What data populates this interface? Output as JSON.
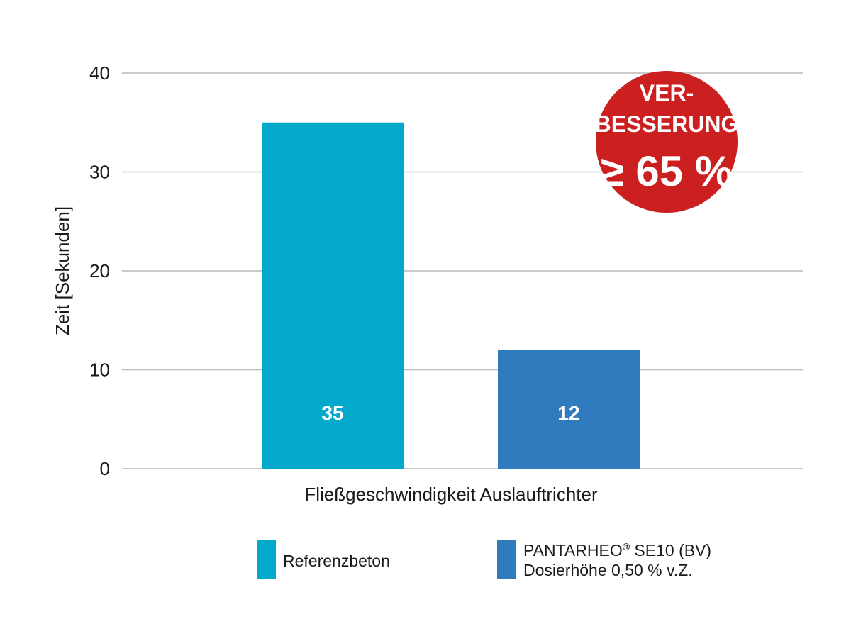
{
  "chart_data": {
    "type": "bar",
    "title": "",
    "ylabel": "Zeit [Sekunden]",
    "xlabel": "Fließgeschwindigkeit Auslauftrichter",
    "ylim": [
      0,
      40
    ],
    "yticks": [
      0,
      10,
      20,
      30,
      40
    ],
    "grid": true,
    "series": [
      {
        "name": "Referenzbeton",
        "value": 35,
        "color": "#02A9CB",
        "data_label": "35"
      },
      {
        "name": "PANTARHEO® SE10 (BV) Dosierhöhe 0,50 % v.Z.",
        "value": 12,
        "color": "#2F7BBD",
        "data_label": "12"
      }
    ],
    "legend_placement": "bottom"
  },
  "badge": {
    "line1": "VER-",
    "line2": "BESSERUNG",
    "line3": "≥ 65 %",
    "color": "#CC1F1F"
  },
  "legend": {
    "item1": "Referenzbeton",
    "item2_brand": "PANTARHEO",
    "item2_reg": "®",
    "item2_rest": " SE10 (BV)",
    "item2_line2": "Dosierhöhe 0,50 % v.Z."
  }
}
